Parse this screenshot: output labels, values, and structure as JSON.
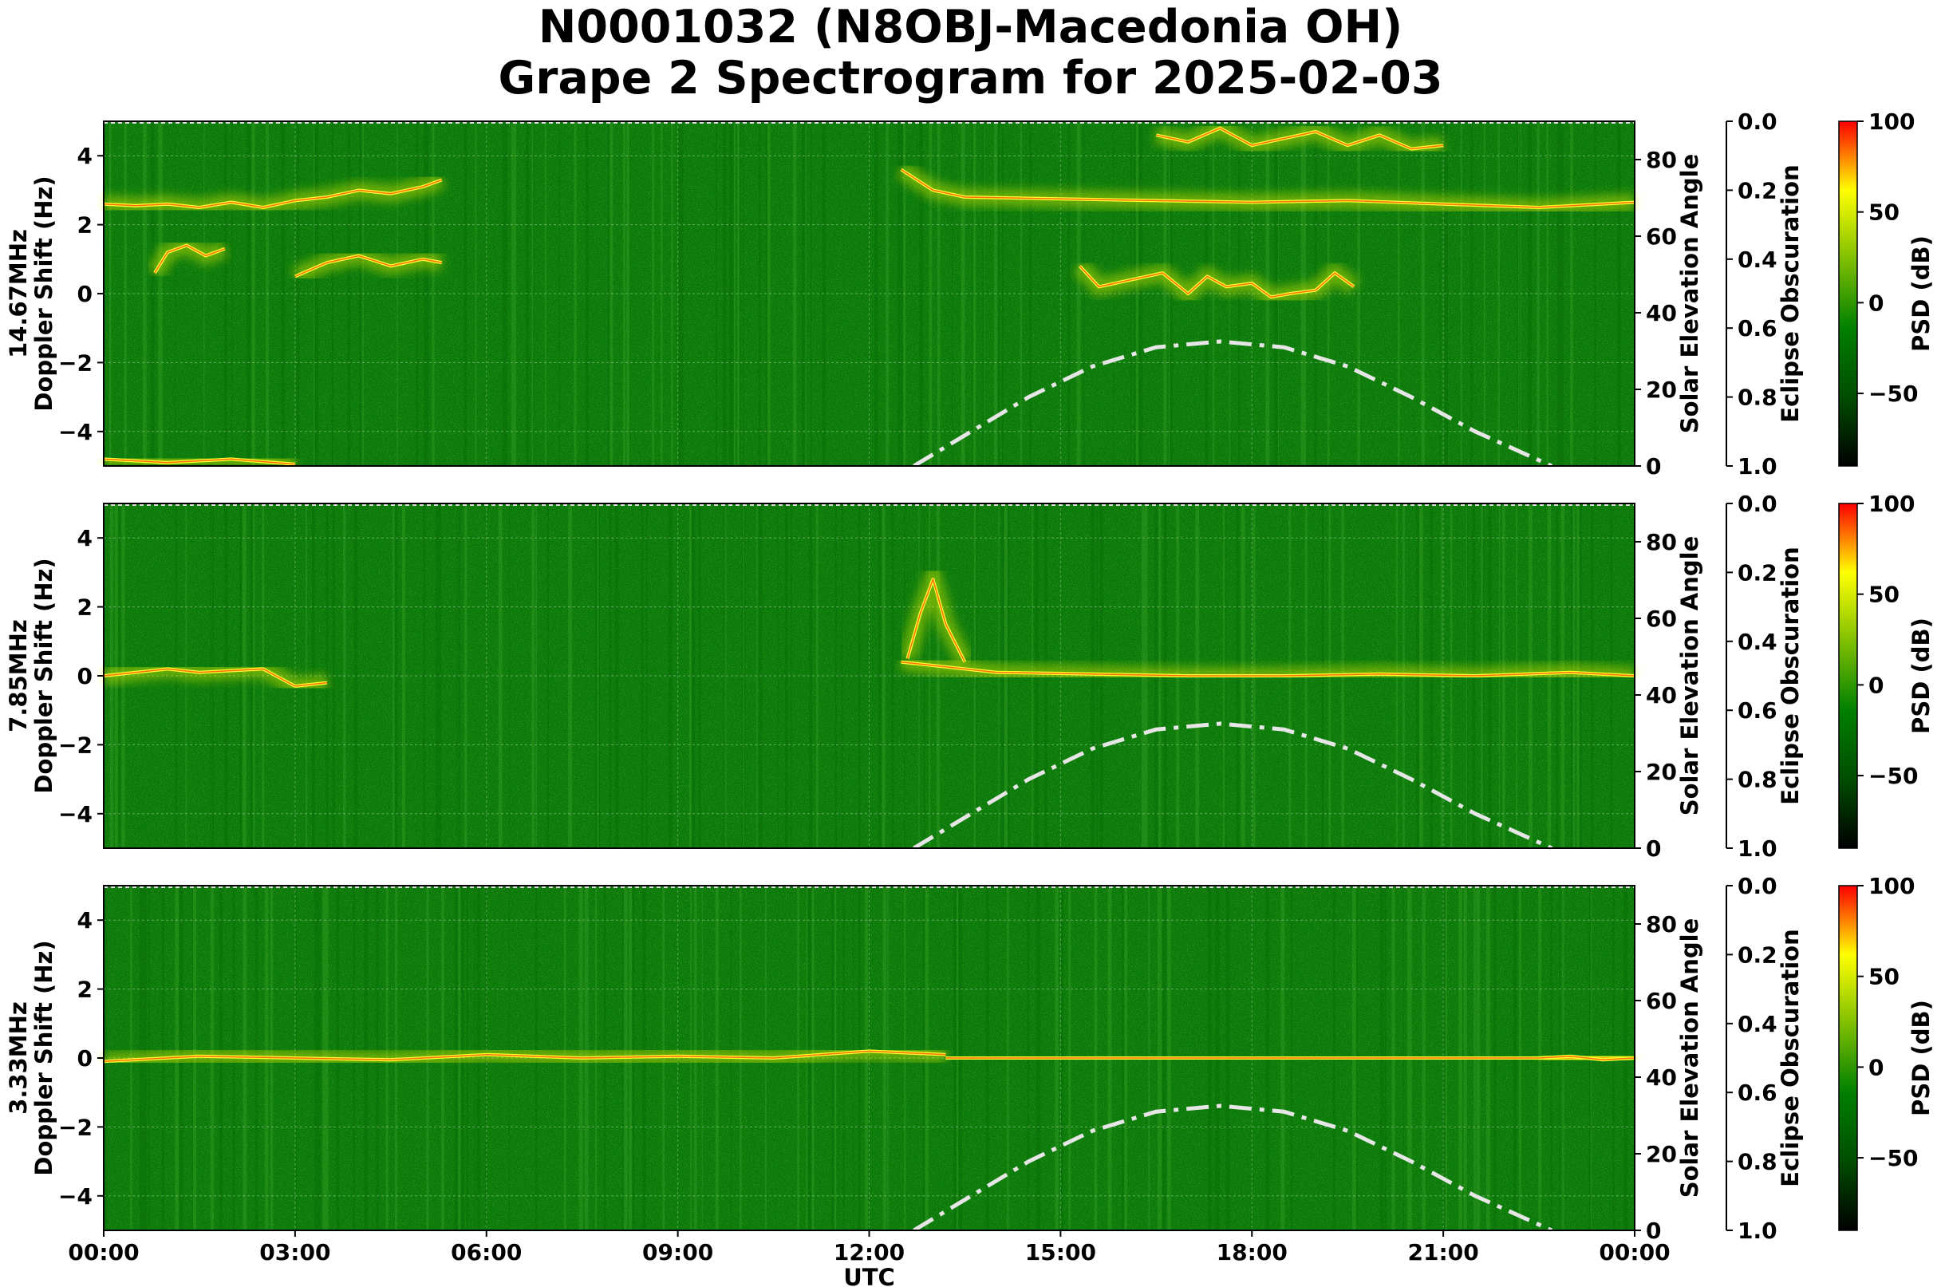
{
  "chart_data": {
    "type": "heatmap",
    "title": "N0001032 (N8OBJ-Macedonia OH)",
    "subtitle": "Grape 2 Spectrogram for 2025-02-03",
    "xlabel": "UTC",
    "x_ticks": [
      "00:00",
      "03:00",
      "06:00",
      "09:00",
      "12:00",
      "15:00",
      "18:00",
      "21:00",
      "00:00"
    ],
    "xlim_hours": [
      0,
      24
    ],
    "y_ticks": [
      4,
      2,
      0,
      -2,
      -4
    ],
    "y_tick_labels": [
      "4",
      "2",
      "0",
      "−2",
      "−4"
    ],
    "ylim": [
      -5,
      5
    ],
    "right_axis_label": "Solar Elevation Angle",
    "right_axis_ticks": [
      "0",
      "20",
      "40",
      "60",
      "80"
    ],
    "right_axis_ylim": [
      0,
      90
    ],
    "eclipse_label": "Eclipse Obscuration",
    "eclipse_ticks": [
      "0.0",
      "0.2",
      "0.4",
      "0.6",
      "0.8",
      "1.0"
    ],
    "colorbar_label": "PSD (dB)",
    "colorbar_ticks": [
      "100",
      "50",
      "0",
      "−50"
    ],
    "colorbar_range": [
      -90,
      100
    ],
    "colormap": [
      "#000000",
      "#004d00",
      "#008000",
      "#7fbf00",
      "#ffff00",
      "#ff0000"
    ],
    "grid": true,
    "solar_elevation_curve": {
      "hours": [
        12.7,
        13.5,
        14.5,
        15.5,
        16.5,
        17.5,
        18.5,
        19.5,
        20.5,
        21.5,
        22.7
      ],
      "values": [
        0,
        8,
        18,
        26,
        31,
        32.5,
        31,
        26,
        18,
        9,
        0
      ]
    },
    "panels": [
      {
        "ylabel_freq": "14.67MHz",
        "ylabel": "Doppler Shift (Hz)",
        "traces": [
          {
            "hours": [
              0,
              0.5,
              1,
              1.5,
              2,
              2.5,
              3,
              3.5,
              4,
              4.5,
              5,
              5.3
            ],
            "values": [
              2.6,
              2.55,
              2.6,
              2.5,
              2.65,
              2.5,
              2.7,
              2.8,
              3.0,
              2.9,
              3.1,
              3.3
            ]
          },
          {
            "hours": [
              0.8,
              1.0,
              1.3,
              1.6,
              1.9
            ],
            "values": [
              0.6,
              1.2,
              1.4,
              1.1,
              1.3
            ]
          },
          {
            "hours": [
              3.0,
              3.5,
              4.0,
              4.5,
              5.0,
              5.3
            ],
            "values": [
              0.5,
              0.9,
              1.1,
              0.8,
              1.0,
              0.9
            ]
          },
          {
            "hours": [
              0,
              1,
              2,
              3
            ],
            "values": [
              -4.8,
              -4.9,
              -4.8,
              -4.95
            ]
          },
          {
            "hours": [
              12.5,
              13.0,
              13.5,
              15,
              16.5,
              18,
              19.5,
              21,
              22.5,
              24
            ],
            "values": [
              3.6,
              3.0,
              2.8,
              2.75,
              2.7,
              2.65,
              2.7,
              2.6,
              2.5,
              2.65
            ]
          },
          {
            "hours": [
              16.5,
              17,
              17.5,
              18,
              18.5,
              19,
              19.5,
              20,
              20.5,
              21
            ],
            "values": [
              4.6,
              4.4,
              4.8,
              4.3,
              4.5,
              4.7,
              4.3,
              4.6,
              4.2,
              4.3
            ]
          },
          {
            "hours": [
              15.3,
              15.6,
              16.6,
              17.0,
              17.3,
              17.6,
              18.0,
              18.3,
              18.6,
              19.0,
              19.3,
              19.6
            ],
            "values": [
              0.8,
              0.2,
              0.6,
              0.0,
              0.5,
              0.2,
              0.3,
              -0.1,
              0.0,
              0.1,
              0.6,
              0.2
            ]
          }
        ]
      },
      {
        "ylabel_freq": "7.85MHz",
        "ylabel": "Doppler Shift (Hz)",
        "traces": [
          {
            "hours": [
              0,
              0.5,
              1,
              1.5,
              2,
              2.5,
              3,
              3.5
            ],
            "values": [
              0.0,
              0.1,
              0.2,
              0.1,
              0.15,
              0.2,
              -0.3,
              -0.2
            ]
          },
          {
            "hours": [
              12.6,
              12.8,
              13.0,
              13.2,
              13.5
            ],
            "values": [
              0.5,
              1.8,
              2.8,
              1.5,
              0.4
            ]
          },
          {
            "hours": [
              12.5,
              14,
              15.5,
              17,
              18.5,
              20,
              21.5,
              23,
              24
            ],
            "values": [
              0.4,
              0.1,
              0.05,
              0.0,
              0.0,
              0.05,
              0.0,
              0.1,
              0.0
            ]
          }
        ]
      },
      {
        "ylabel_freq": "3.33MHz",
        "ylabel": "Doppler Shift (Hz)",
        "traces": [
          {
            "hours": [
              0,
              1.5,
              3,
              4.5,
              6,
              7.5,
              9,
              10.5,
              12,
              13.2
            ],
            "values": [
              -0.1,
              0.05,
              0.0,
              -0.05,
              0.1,
              0.0,
              0.05,
              0.0,
              0.2,
              0.1
            ]
          },
          {
            "hours": [
              13.2,
              24
            ],
            "values": [
              0.0,
              0.0
            ]
          },
          {
            "hours": [
              22.5,
              23,
              23.5,
              24
            ],
            "values": [
              0.0,
              0.05,
              -0.05,
              0.0
            ]
          }
        ]
      }
    ]
  }
}
